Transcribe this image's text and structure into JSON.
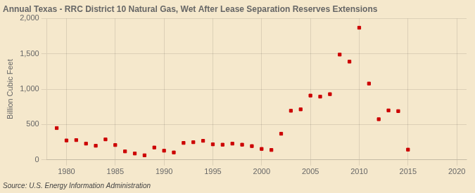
{
  "chart_data": {
    "type": "scatter",
    "title": "Annual Texas - RRC District 10 Natural Gas, Wet After Lease Separation Reserves Extensions",
    "ylabel": "Billion Cubic Feet",
    "source": "Source: U.S. Energy Information Administration",
    "background_color": "#f5e8cc",
    "color": "#cc0000",
    "marker": "square",
    "grid": true,
    "x": [
      1979,
      1980,
      1981,
      1982,
      1983,
      1984,
      1985,
      1986,
      1987,
      1988,
      1989,
      1990,
      1991,
      1992,
      1993,
      1994,
      1995,
      1996,
      1997,
      1998,
      1999,
      2000,
      2001,
      2002,
      2003,
      2004,
      2005,
      2006,
      2007,
      2008,
      2009,
      2010,
      2011,
      2012,
      2013,
      2014,
      2015
    ],
    "values": [
      450,
      275,
      280,
      230,
      200,
      290,
      210,
      120,
      90,
      65,
      175,
      130,
      105,
      240,
      250,
      270,
      220,
      215,
      230,
      215,
      195,
      155,
      140,
      370,
      695,
      715,
      910,
      895,
      930,
      1490,
      1390,
      1870,
      1080,
      575,
      700,
      690,
      145
    ],
    "xlim": [
      1978,
      2021
    ],
    "xticks": [
      1980,
      1985,
      1990,
      1995,
      2000,
      2005,
      2010,
      2015,
      2020
    ],
    "ylim": [
      0,
      2000
    ],
    "yticks": [
      0,
      500,
      {
        "value": 1000,
        "label": "1,000"
      },
      {
        "value": 1500,
        "label": "1,500"
      },
      {
        "value": 2000,
        "label": "2,000"
      }
    ]
  }
}
